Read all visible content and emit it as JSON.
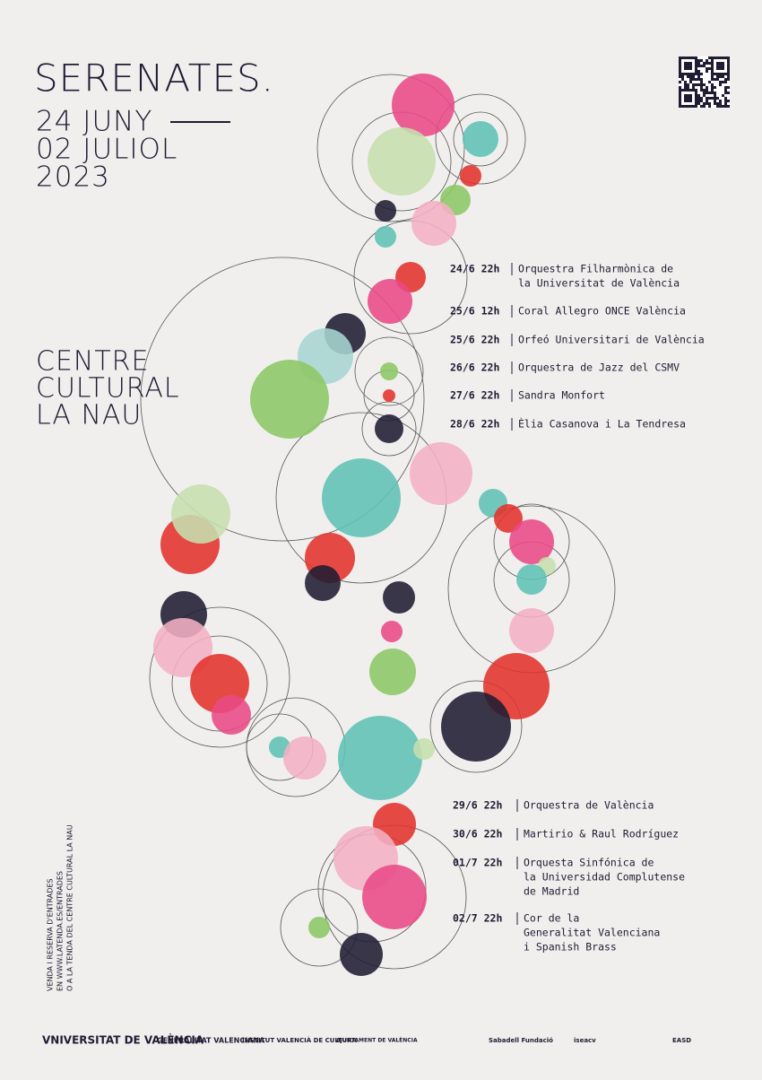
{
  "header": {
    "title": "SERENATES.",
    "dates": [
      "24 JUNY",
      "02 JULIOL"
    ],
    "year": "2023"
  },
  "venue": [
    "CENTRE",
    "CULTURAL",
    "LA NAU"
  ],
  "schedule_top": [
    {
      "when": "24/6 22h",
      "performer": [
        "Orquestra Filharmònica de",
        "la Universitat de València"
      ]
    },
    {
      "when": "25/6 12h",
      "performer": [
        "Coral Allegro ONCE València"
      ]
    },
    {
      "when": "25/6 22h",
      "performer": [
        "Orfeó Universitari de València"
      ]
    },
    {
      "when": "26/6 22h",
      "performer": [
        "Orquestra de Jazz del CSMV"
      ]
    },
    {
      "when": "27/6 22h",
      "performer": [
        "Sandra Monfort"
      ]
    },
    {
      "when": "28/6 22h",
      "performer": [
        "Èlia Casanova i La Tendresa"
      ]
    }
  ],
  "schedule_bottom": [
    {
      "when": "29/6 22h",
      "performer": [
        "Orquestra de València"
      ]
    },
    {
      "when": "30/6 22h",
      "performer": [
        "Martirio & Raul Rodríguez"
      ]
    },
    {
      "when": "01/7 22h",
      "performer": [
        "Orquesta Sinfónica de",
        "la Universidad Complutense",
        "de Madrid"
      ]
    },
    {
      "when": "02/7 22h",
      "performer": [
        "Cor de la",
        "Generalitat Valenciana",
        "i Spanish Brass"
      ]
    }
  ],
  "ticket_info": [
    "VENDA I RESERVA D'ENTRADES",
    "EN WWW.LATENDA.ES/ENTRADES",
    "O A LA TENDA DEL CENTRE CULTURAL LA NAU"
  ],
  "sponsors": [
    "VNIVERSITAT DE VALÈNCIA",
    "GENERALITAT VALENCIANA",
    "INSTITUT VALENCIÀ DE CULTURA",
    "AJUNTAMENT DE VALÈNCIA",
    "Sabadell Fundació",
    "iseacv",
    "EASD"
  ]
}
